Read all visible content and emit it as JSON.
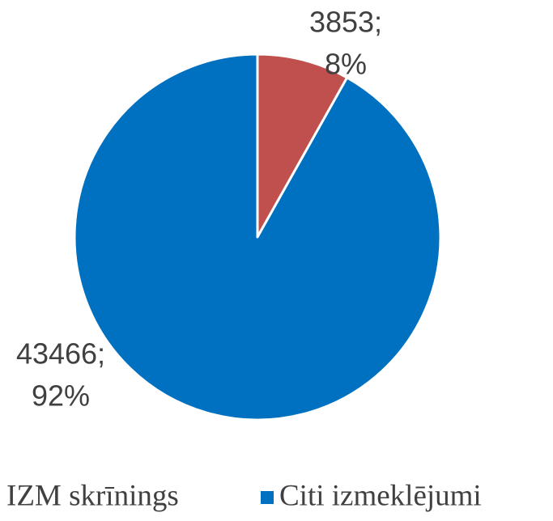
{
  "chart_data": {
    "type": "pie",
    "series": [
      {
        "name": "IZM skrīnings",
        "color": "#c0504d"
      },
      {
        "name": "Citi izmeklējumi",
        "color": "#0070c0"
      }
    ],
    "values": [
      3853,
      43466
    ],
    "value_labels": [
      "3853;",
      "43466;"
    ],
    "percents": [
      8,
      92
    ],
    "percent_labels": [
      "8%",
      "92%"
    ]
  }
}
